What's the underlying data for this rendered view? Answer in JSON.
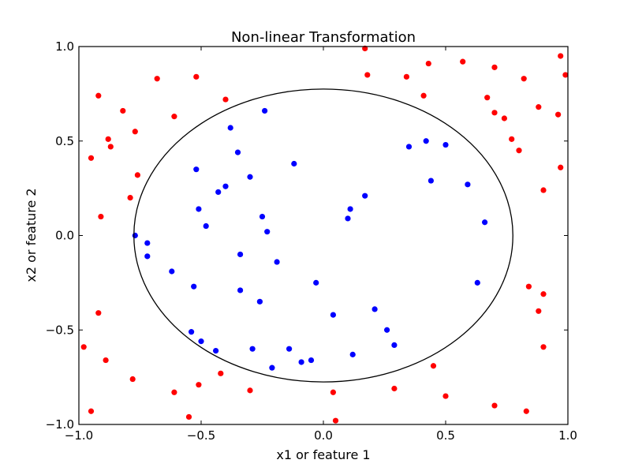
{
  "chart_data": {
    "type": "scatter",
    "title": "Non-linear Transformation",
    "xlabel": "x1 or feature 1",
    "ylabel": "x2 or feature 2",
    "xlim": [
      -1.0,
      1.0
    ],
    "ylim": [
      -1.0,
      1.0
    ],
    "xticks": [
      "−1.0",
      "−0.5",
      "0.0",
      "0.5",
      "1.0"
    ],
    "yticks": [
      "−1.0",
      "−0.5",
      "0.0",
      "0.5",
      "1.0"
    ],
    "grid": false,
    "boundary": {
      "shape": "ellipse",
      "cx": 0.0,
      "cy": 0.0,
      "rx": 0.775,
      "ry": 0.775,
      "color": "#000000"
    },
    "series": [
      {
        "color": "#ff0000",
        "points": [
          [
            -0.95,
            0.41
          ],
          [
            -0.92,
            0.74
          ],
          [
            -0.88,
            0.51
          ],
          [
            -0.87,
            0.47
          ],
          [
            -0.91,
            0.1
          ],
          [
            -0.82,
            0.66
          ],
          [
            -0.77,
            0.55
          ],
          [
            -0.76,
            0.32
          ],
          [
            -0.79,
            0.2
          ],
          [
            -0.68,
            0.83
          ],
          [
            -0.52,
            0.84
          ],
          [
            -0.61,
            0.63
          ],
          [
            -0.4,
            0.72
          ],
          [
            0.17,
            0.99
          ],
          [
            0.18,
            0.85
          ],
          [
            0.34,
            0.84
          ],
          [
            0.43,
            0.91
          ],
          [
            0.41,
            0.74
          ],
          [
            0.57,
            0.92
          ],
          [
            0.7,
            0.89
          ],
          [
            0.82,
            0.83
          ],
          [
            0.67,
            0.73
          ],
          [
            0.7,
            0.65
          ],
          [
            0.74,
            0.62
          ],
          [
            0.88,
            0.68
          ],
          [
            0.96,
            0.64
          ],
          [
            0.97,
            0.95
          ],
          [
            0.99,
            0.85
          ],
          [
            0.77,
            0.51
          ],
          [
            0.8,
            0.45
          ],
          [
            0.97,
            0.36
          ],
          [
            0.9,
            0.24
          ],
          [
            0.84,
            -0.27
          ],
          [
            0.9,
            -0.31
          ],
          [
            0.88,
            -0.4
          ],
          [
            0.9,
            -0.59
          ],
          [
            -0.92,
            -0.41
          ],
          [
            -0.98,
            -0.59
          ],
          [
            -0.89,
            -0.66
          ],
          [
            -0.78,
            -0.76
          ],
          [
            -0.61,
            -0.83
          ],
          [
            -0.51,
            -0.79
          ],
          [
            -0.42,
            -0.73
          ],
          [
            -0.3,
            -0.82
          ],
          [
            -0.55,
            -0.96
          ],
          [
            -0.95,
            -0.93
          ],
          [
            0.04,
            -0.83
          ],
          [
            0.05,
            -0.98
          ],
          [
            0.29,
            -0.81
          ],
          [
            0.45,
            -0.69
          ],
          [
            0.5,
            -0.85
          ],
          [
            0.7,
            -0.9
          ],
          [
            0.83,
            -0.93
          ]
        ]
      },
      {
        "color": "#0000ff",
        "points": [
          [
            -0.24,
            0.66
          ],
          [
            -0.38,
            0.57
          ],
          [
            -0.35,
            0.44
          ],
          [
            -0.12,
            0.38
          ],
          [
            -0.52,
            0.35
          ],
          [
            -0.3,
            0.31
          ],
          [
            -0.4,
            0.26
          ],
          [
            -0.43,
            0.23
          ],
          [
            -0.51,
            0.14
          ],
          [
            -0.48,
            0.05
          ],
          [
            -0.25,
            0.1
          ],
          [
            -0.23,
            0.02
          ],
          [
            -0.77,
            0.0
          ],
          [
            -0.72,
            -0.04
          ],
          [
            -0.72,
            -0.11
          ],
          [
            -0.62,
            -0.19
          ],
          [
            -0.34,
            -0.1
          ],
          [
            -0.19,
            -0.14
          ],
          [
            -0.53,
            -0.27
          ],
          [
            -0.34,
            -0.29
          ],
          [
            -0.26,
            -0.35
          ],
          [
            -0.03,
            -0.25
          ],
          [
            0.04,
            -0.42
          ],
          [
            0.17,
            0.21
          ],
          [
            0.11,
            0.14
          ],
          [
            0.1,
            0.09
          ],
          [
            0.35,
            0.47
          ],
          [
            0.42,
            0.5
          ],
          [
            0.5,
            0.48
          ],
          [
            0.44,
            0.29
          ],
          [
            0.59,
            0.27
          ],
          [
            0.66,
            0.07
          ],
          [
            0.63,
            -0.25
          ],
          [
            0.21,
            -0.39
          ],
          [
            0.26,
            -0.5
          ],
          [
            0.29,
            -0.58
          ],
          [
            0.12,
            -0.63
          ],
          [
            -0.54,
            -0.51
          ],
          [
            -0.5,
            -0.56
          ],
          [
            -0.44,
            -0.61
          ],
          [
            -0.29,
            -0.6
          ],
          [
            -0.14,
            -0.6
          ],
          [
            -0.09,
            -0.67
          ],
          [
            -0.05,
            -0.66
          ],
          [
            -0.21,
            -0.7
          ]
        ]
      }
    ]
  }
}
